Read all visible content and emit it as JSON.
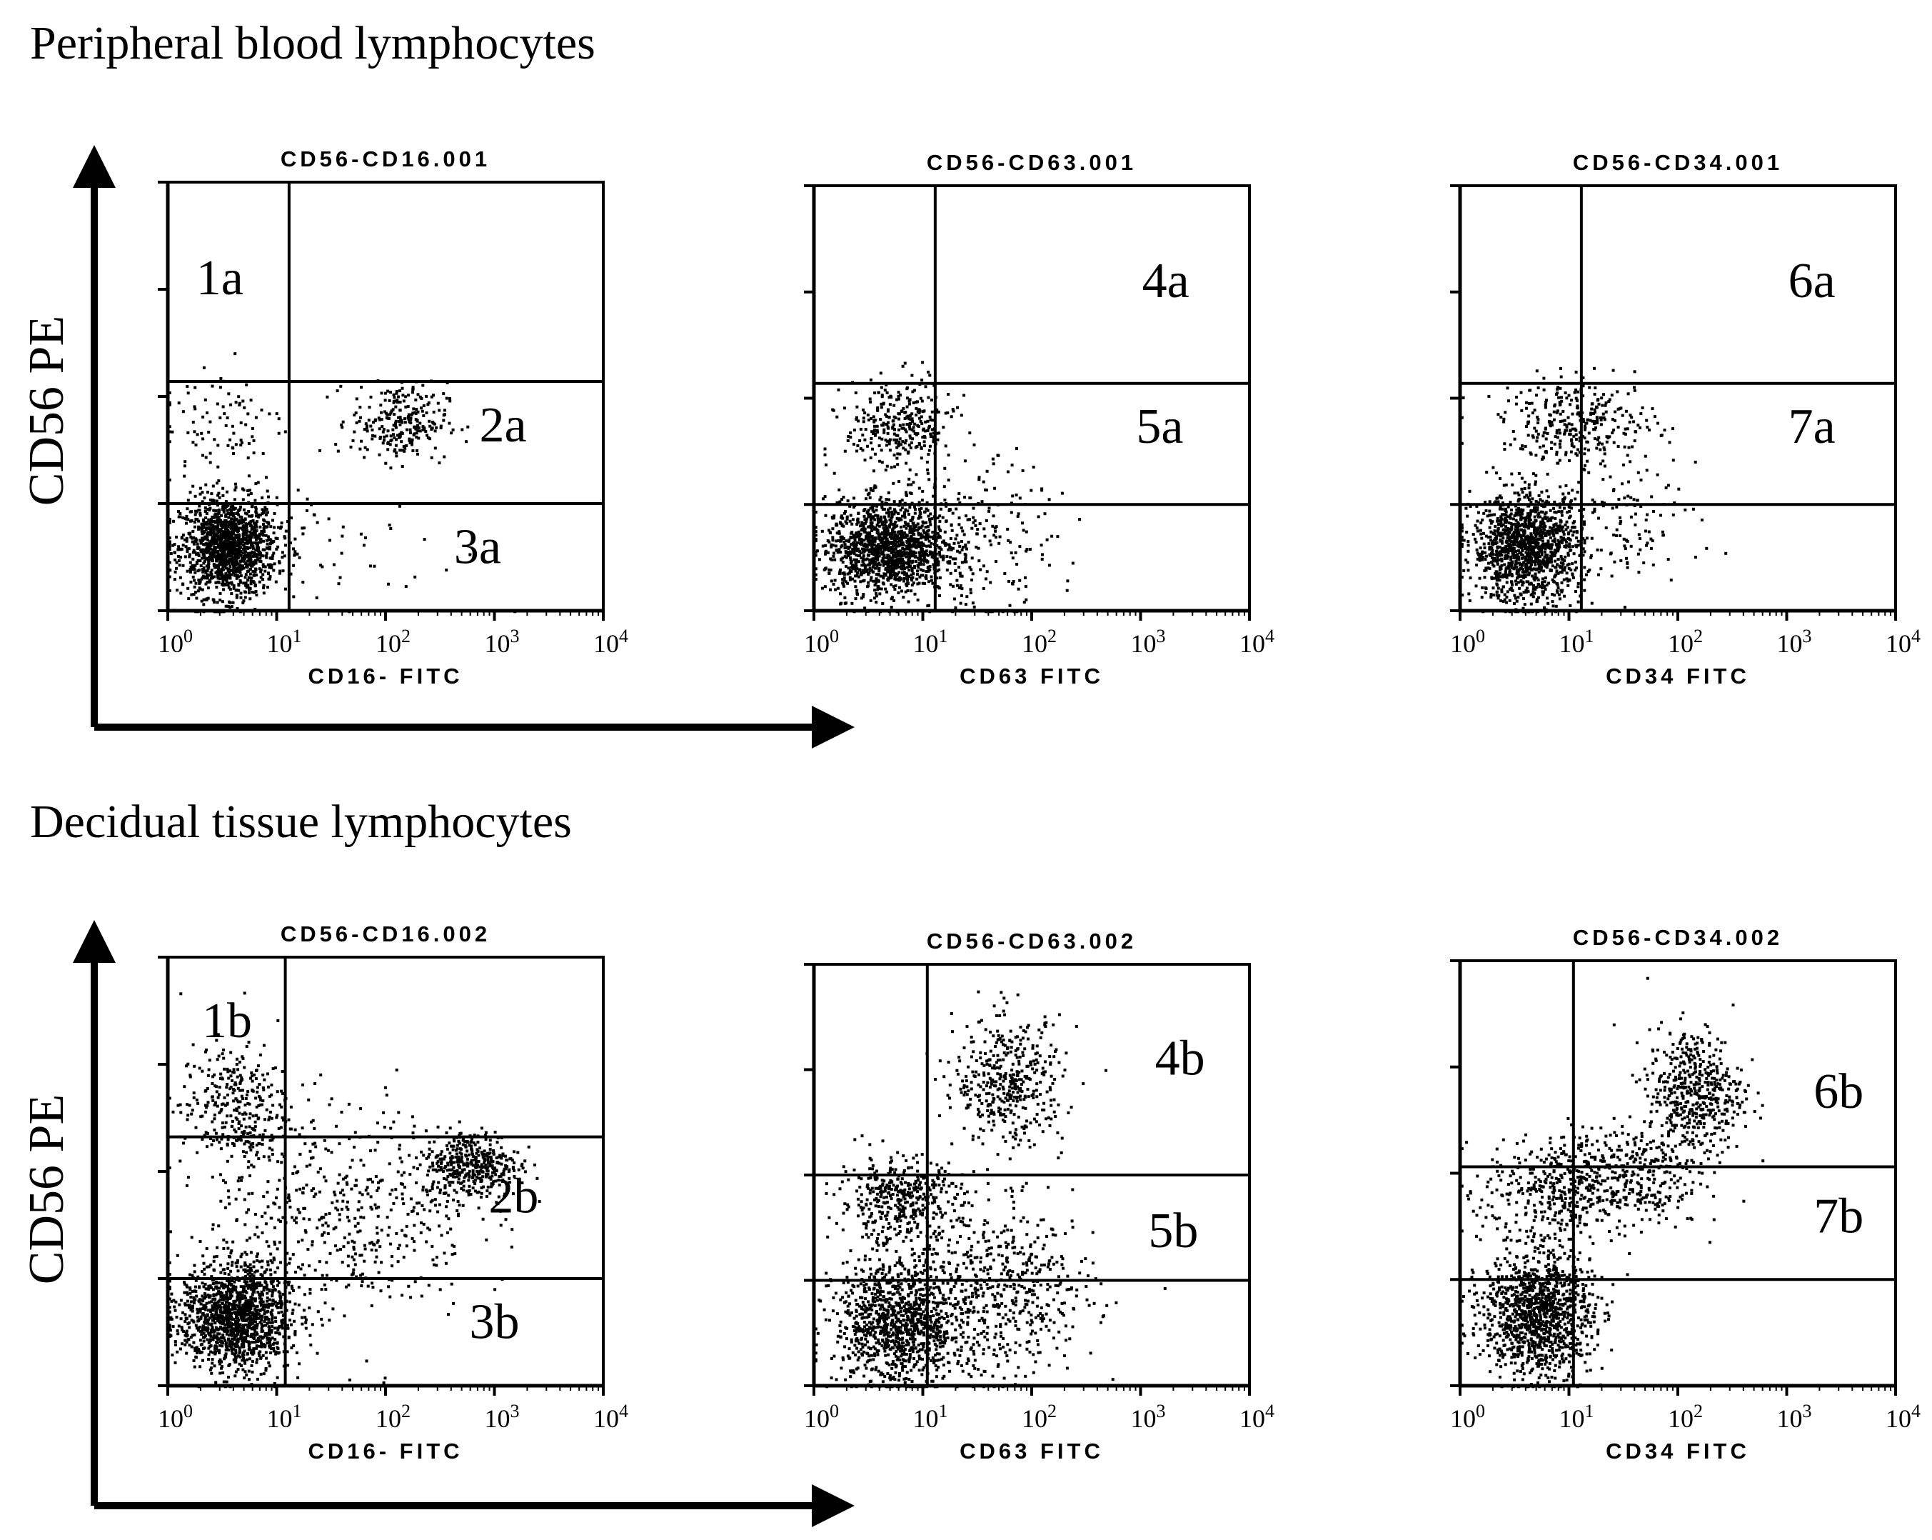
{
  "sections": [
    {
      "title": "Peripheral blood lymphocytes",
      "ylabel": "CD56 PE"
    },
    {
      "title": "Decidual tissue lymphocytes",
      "ylabel": "CD56 PE"
    }
  ],
  "tick_labels": [
    "10^0",
    "10^1",
    "10^2",
    "10^3",
    "10^4"
  ],
  "chart_data": [
    {
      "type": "scatter",
      "title": "CD56-CD16.001",
      "xlabel": "CD16- FITC",
      "ylabel": "CD56 PE",
      "xscale": "log",
      "xlim": [
        1,
        10000
      ],
      "ylim": [
        1,
        10000
      ],
      "quadrant_lines": {
        "x": 13,
        "y": [
          10,
          138
        ]
      },
      "regions": [
        {
          "label": "1a",
          "x": 3,
          "y": 1300
        },
        {
          "label": "2a",
          "x": 1200,
          "y": 55
        },
        {
          "label": "3a",
          "x": 700,
          "y": 4
        }
      ],
      "populations": [
        {
          "x": 3.5,
          "y": 4,
          "sx": 0.22,
          "sy": 0.23,
          "n": 1400
        },
        {
          "x": 130,
          "y": 60,
          "sx": 0.22,
          "sy": 0.18,
          "n": 260
        },
        {
          "x": 3,
          "y": 60,
          "sx": 0.3,
          "sy": 0.3,
          "n": 90
        },
        {
          "x": 30,
          "y": 4,
          "sx": 0.6,
          "sy": 0.3,
          "n": 60
        }
      ]
    },
    {
      "type": "scatter",
      "title": "CD56-CD63.001",
      "xlabel": "CD63 FITC",
      "ylabel": "CD56 PE",
      "xscale": "log",
      "xlim": [
        1,
        10000
      ],
      "ylim": [
        1,
        10000
      ],
      "quadrant_lines": {
        "x": 13,
        "y": [
          10,
          138
        ]
      },
      "regions": [
        {
          "label": "4a",
          "x": 1700,
          "y": 1300
        },
        {
          "label": "5a",
          "x": 1500,
          "y": 55
        }
      ],
      "populations": [
        {
          "x": 4.5,
          "y": 4,
          "sx": 0.28,
          "sy": 0.22,
          "n": 1300
        },
        {
          "x": 6,
          "y": 55,
          "sx": 0.25,
          "sy": 0.22,
          "n": 320
        },
        {
          "x": 25,
          "y": 5,
          "sx": 0.4,
          "sy": 0.35,
          "n": 250
        }
      ]
    },
    {
      "type": "scatter",
      "title": "CD56-CD34.001",
      "xlabel": "CD34 FITC",
      "ylabel": "CD56 PE",
      "xscale": "log",
      "xlim": [
        1,
        10000
      ],
      "ylim": [
        1,
        10000
      ],
      "quadrant_lines": {
        "x": 13,
        "y": [
          10,
          138
        ]
      },
      "regions": [
        {
          "label": "6a",
          "x": 1700,
          "y": 1300
        },
        {
          "label": "7a",
          "x": 1700,
          "y": 55
        }
      ],
      "populations": [
        {
          "x": 4,
          "y": 4,
          "sx": 0.25,
          "sy": 0.25,
          "n": 1300
        },
        {
          "x": 12,
          "y": 60,
          "sx": 0.35,
          "sy": 0.2,
          "n": 320
        },
        {
          "x": 30,
          "y": 8,
          "sx": 0.35,
          "sy": 0.3,
          "n": 120
        }
      ]
    },
    {
      "type": "scatter",
      "title": "CD56-CD16.002",
      "xlabel": "CD16- FITC",
      "ylabel": "CD56 PE",
      "xscale": "log",
      "xlim": [
        1,
        10000
      ],
      "ylim": [
        1,
        10000
      ],
      "quadrant_lines": {
        "x": 12,
        "y": [
          10,
          210
        ]
      },
      "regions": [
        {
          "label": "1b",
          "x": 3.5,
          "y": 2600
        },
        {
          "label": "2b",
          "x": 1500,
          "y": 60
        },
        {
          "label": "3b",
          "x": 1000,
          "y": 4
        }
      ],
      "populations": [
        {
          "x": 4,
          "y": 4.5,
          "sx": 0.25,
          "sy": 0.25,
          "n": 1400
        },
        {
          "x": 600,
          "y": 120,
          "sx": 0.22,
          "sy": 0.16,
          "n": 420
        },
        {
          "x": 4,
          "y": 400,
          "sx": 0.25,
          "sy": 0.3,
          "n": 320
        },
        {
          "x": 40,
          "y": 40,
          "sx": 0.6,
          "sy": 0.5,
          "n": 500
        }
      ]
    },
    {
      "type": "scatter",
      "title": "CD56-CD63.002",
      "xlabel": "CD63 FITC",
      "ylabel": "CD56 PE",
      "xscale": "log",
      "xlim": [
        1,
        10000
      ],
      "ylim": [
        1,
        10000
      ],
      "quadrant_lines": {
        "x": 11,
        "y": [
          10,
          100
        ]
      },
      "regions": [
        {
          "label": "4b",
          "x": 2300,
          "y": 1300
        },
        {
          "label": "5b",
          "x": 2000,
          "y": 30
        }
      ],
      "populations": [
        {
          "x": 6,
          "y": 4,
          "sx": 0.3,
          "sy": 0.3,
          "n": 1100
        },
        {
          "x": 6,
          "y": 60,
          "sx": 0.28,
          "sy": 0.2,
          "n": 420
        },
        {
          "x": 60,
          "y": 800,
          "sx": 0.25,
          "sy": 0.3,
          "n": 420
        },
        {
          "x": 60,
          "y": 8,
          "sx": 0.4,
          "sy": 0.4,
          "n": 500
        }
      ]
    },
    {
      "type": "scatter",
      "title": "CD56-CD34.002",
      "xlabel": "CD34 FITC",
      "ylabel": "CD56 PE",
      "xscale": "log",
      "xlim": [
        1,
        10000
      ],
      "ylim": [
        1,
        10000
      ],
      "quadrant_lines": {
        "x": 11,
        "y": [
          10,
          115
        ]
      },
      "regions": [
        {
          "label": "6b",
          "x": 3000,
          "y": 600
        },
        {
          "label": "7b",
          "x": 3000,
          "y": 40
        }
      ],
      "populations": [
        {
          "x": 5,
          "y": 5,
          "sx": 0.25,
          "sy": 0.3,
          "n": 1200
        },
        {
          "x": 8,
          "y": 70,
          "sx": 0.35,
          "sy": 0.25,
          "n": 420
        },
        {
          "x": 140,
          "y": 600,
          "sx": 0.22,
          "sy": 0.3,
          "n": 500
        },
        {
          "x": 40,
          "y": 100,
          "sx": 0.3,
          "sy": 0.25,
          "n": 260
        }
      ]
    }
  ]
}
